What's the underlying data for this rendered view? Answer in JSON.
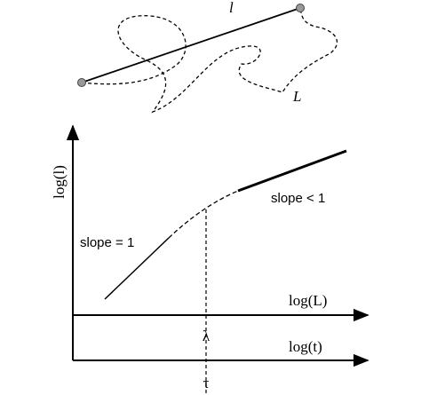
{
  "path_labels": {
    "straight": "l",
    "curved": "L"
  },
  "axes": {
    "y_label": "log(l)",
    "x1_label": "log(L)",
    "x1_marker": "λ",
    "x2_label": "log(t)",
    "x2_marker": "τ"
  },
  "annotations": {
    "low": "slope = 1",
    "high": "slope < 1"
  }
}
